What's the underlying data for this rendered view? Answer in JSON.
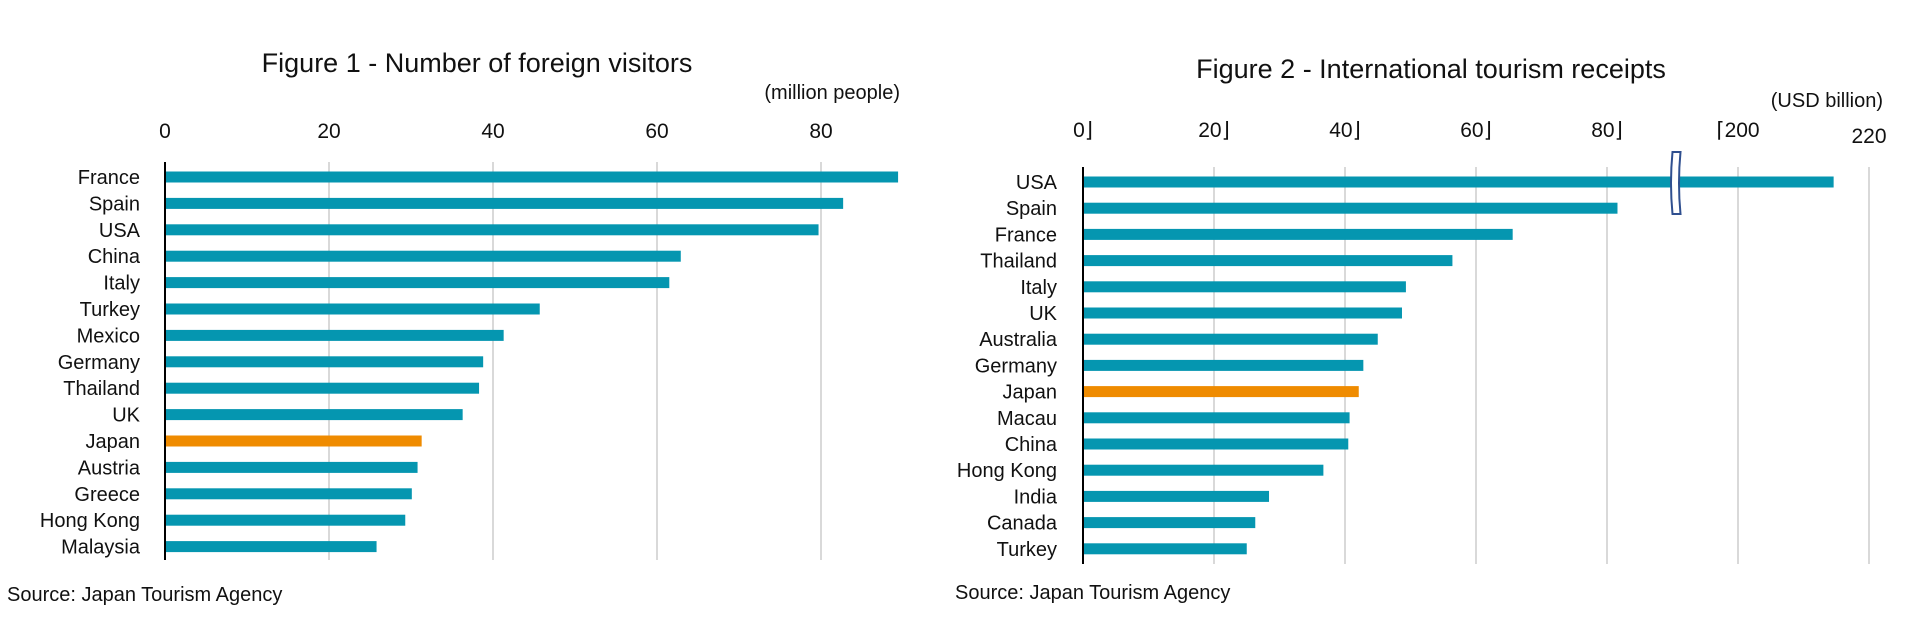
{
  "colors": {
    "bar": "#0596b0",
    "highlight": "#ef8b00",
    "grid": "#d9d9d9",
    "axis": "#000000",
    "break_outline": "#2f4f8f"
  },
  "chart_data": [
    {
      "type": "bar",
      "orientation": "horizontal",
      "title": "Figure 1 - Number of foreign visitors",
      "unit": "(million people)",
      "source": "Source: Japan Tourism Agency",
      "ticks": [
        0,
        20,
        40,
        60,
        80
      ],
      "tick_labels": [
        "0",
        "20",
        "40",
        "60",
        "80"
      ],
      "xlim": [
        0,
        90
      ],
      "grid": true,
      "highlight": "Japan",
      "categories": [
        "France",
        "Spain",
        "USA",
        "China",
        "Italy",
        "Turkey",
        "Mexico",
        "Germany",
        "Thailand",
        "UK",
        "Japan",
        "Austria",
        "Greece",
        "Hong Kong",
        "Malaysia"
      ],
      "values": [
        89.4,
        82.7,
        79.7,
        62.9,
        61.5,
        45.7,
        41.3,
        38.8,
        38.3,
        36.3,
        31.3,
        30.8,
        30.1,
        29.3,
        25.8
      ]
    },
    {
      "type": "bar",
      "orientation": "horizontal",
      "title": "Figure 2 - International tourism receipts",
      "unit": "(USD billion)",
      "source": "Source: Japan Tourism Agency",
      "ticks": [
        0,
        20,
        40,
        60,
        80,
        200,
        220
      ],
      "tick_labels": [
        "0⌋",
        "20⌋",
        "40⌋",
        "60⌋",
        "80⌋",
        "⌈200",
        "220"
      ],
      "axis_break": [
        100,
        200
      ],
      "grid": true,
      "highlight": "Japan",
      "categories": [
        "USA",
        "Spain",
        "France",
        "Thailand",
        "Italy",
        "UK",
        "Australia",
        "Germany",
        "Japan",
        "Macau",
        "China",
        "Hong Kong",
        "India",
        "Canada",
        "Turkey"
      ],
      "values": [
        214.6,
        81.6,
        65.6,
        56.4,
        49.3,
        48.7,
        45.0,
        42.8,
        42.1,
        40.7,
        40.5,
        36.7,
        28.4,
        26.3,
        25.0
      ]
    }
  ]
}
